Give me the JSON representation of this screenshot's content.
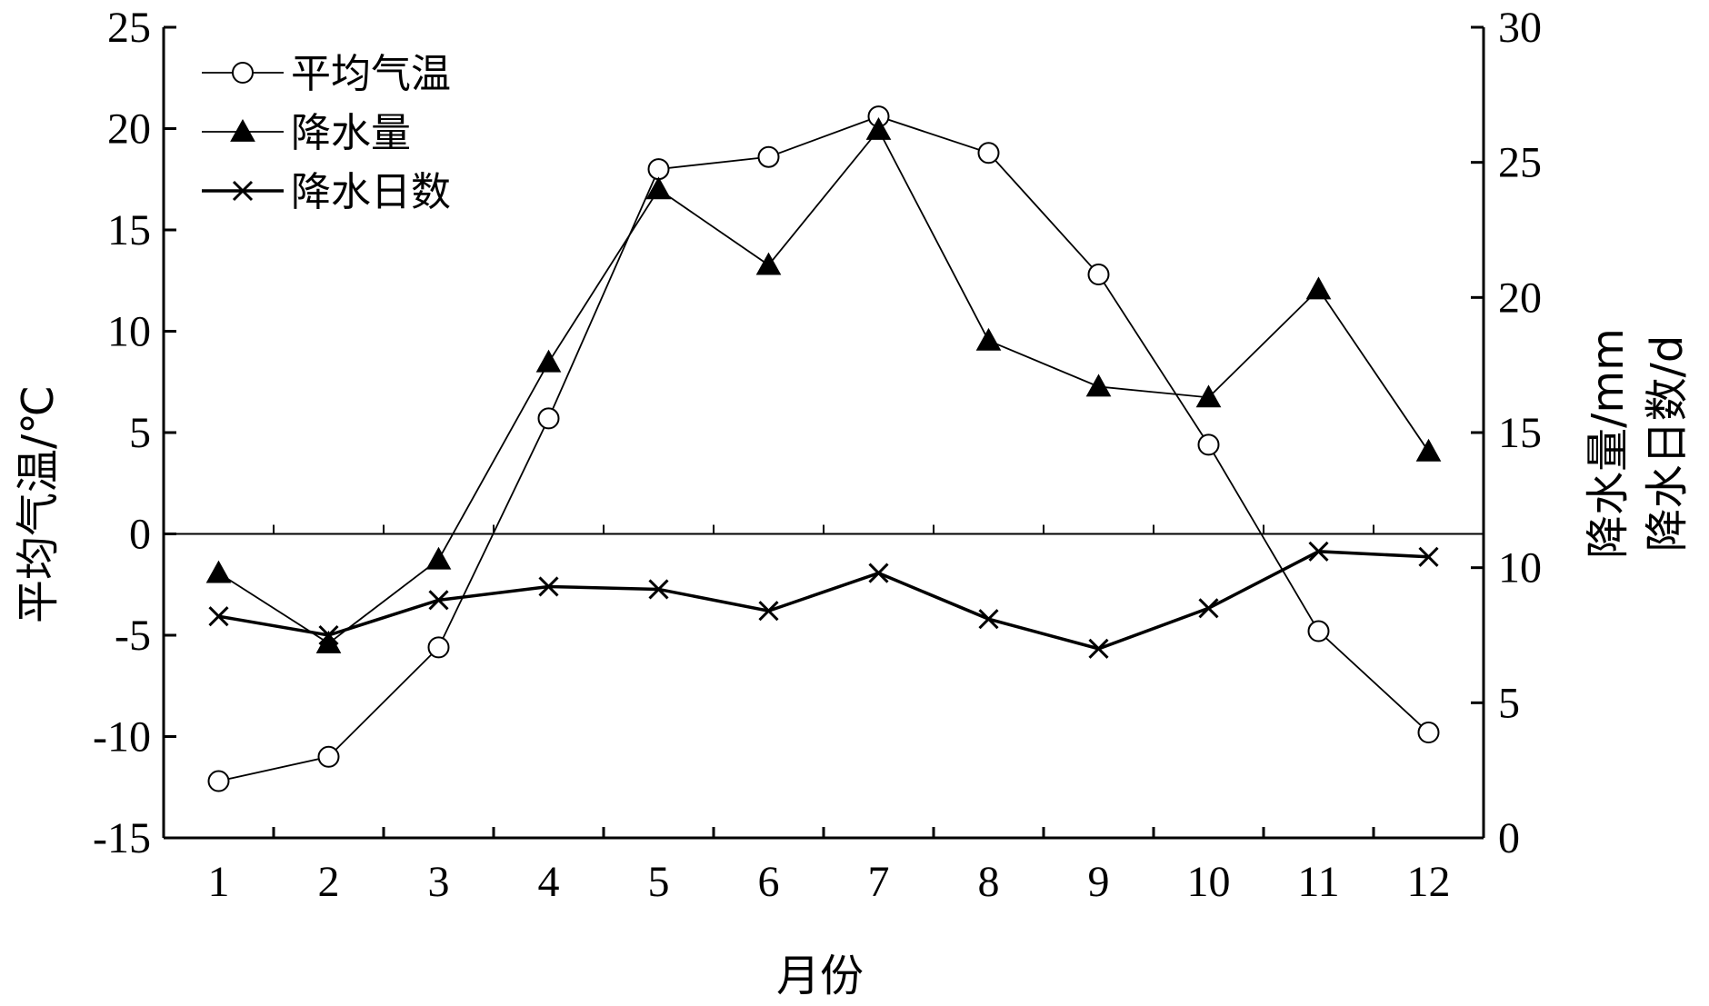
{
  "chart_data": {
    "type": "line",
    "xlabel": "月份",
    "ylabel_left": "平均气温/℃",
    "ylabel_right": [
      "降水量/mm",
      "降水日数/d"
    ],
    "categories": [
      "1",
      "2",
      "3",
      "4",
      "5",
      "6",
      "7",
      "8",
      "9",
      "10",
      "11",
      "12"
    ],
    "y_left": {
      "range": [
        -15,
        25
      ],
      "ticks": [
        "-15",
        "-10",
        "-5",
        "0",
        "5",
        "10",
        "15",
        "20",
        "25"
      ]
    },
    "y_right": {
      "range": [
        0,
        30
      ],
      "ticks": [
        "0",
        "5",
        "10",
        "15",
        "20",
        "25",
        "30"
      ]
    },
    "legend": {
      "position": "top-left"
    },
    "series": [
      {
        "name": "平均气温",
        "axis": "left",
        "marker": "circle",
        "values": [
          -12.2,
          -11.0,
          -5.6,
          5.7,
          18.0,
          18.6,
          20.6,
          18.8,
          12.8,
          4.4,
          -4.8,
          -9.8
        ]
      },
      {
        "name": "降水量",
        "axis": "right",
        "marker": "triangle",
        "values": [
          9.8,
          7.2,
          10.3,
          17.6,
          24.0,
          21.2,
          26.2,
          18.4,
          16.7,
          16.3,
          20.3,
          14.3
        ]
      },
      {
        "name": "降水日数",
        "axis": "right",
        "marker": "x",
        "values": [
          8.2,
          7.5,
          8.8,
          9.3,
          9.2,
          8.4,
          9.8,
          8.1,
          7.0,
          8.5,
          10.6,
          10.4
        ]
      }
    ]
  }
}
